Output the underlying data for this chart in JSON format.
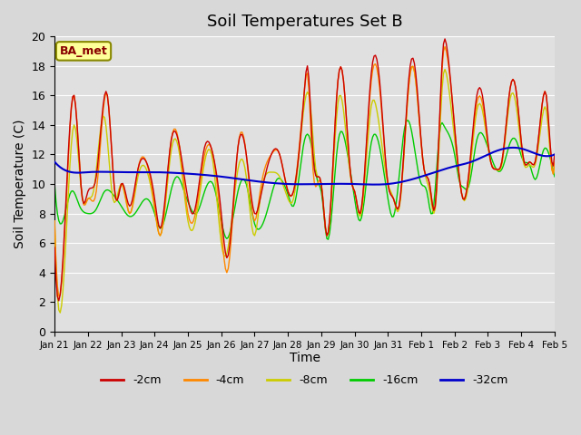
{
  "title": "Soil Temperatures Set B",
  "xlabel": "Time",
  "ylabel": "Soil Temperature (C)",
  "ylim": [
    0,
    20
  ],
  "background_color": "#d8d8d8",
  "plot_bg_color": "#e0e0e0",
  "label_box_text": "BA_met",
  "label_box_facecolor": "#ffff99",
  "label_box_edgecolor": "#888800",
  "label_box_textcolor": "#880000",
  "series_colors": {
    "2cm": "#cc0000",
    "4cm": "#ff8800",
    "8cm": "#cccc00",
    "16cm": "#00cc00",
    "32cm": "#0000cc"
  },
  "xtick_labels": [
    "Jan 21",
    "Jan 22",
    "Jan 23",
    "Jan 24",
    "Jan 25",
    "Jan 26",
    "Jan 27",
    "Jan 28",
    "Jan 29",
    "Jan 30",
    "Jan 31",
    "Feb 1",
    "Feb 2",
    "Feb 3",
    "Feb 4",
    "Feb 5"
  ],
  "xtick_positions": [
    0,
    24,
    48,
    72,
    96,
    120,
    144,
    168,
    192,
    216,
    240,
    264,
    288,
    312,
    336,
    360
  ]
}
